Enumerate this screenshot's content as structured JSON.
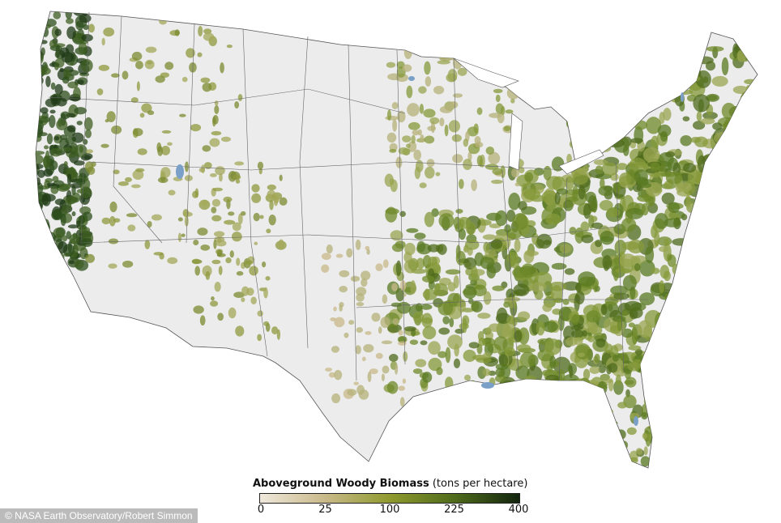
{
  "legend": {
    "title": "Aboveground Woody Biomass",
    "units": "(tons per hectare)",
    "ticks": [
      "0",
      "25",
      "100",
      "225",
      "400"
    ],
    "tick_values": [
      0,
      25,
      100,
      225,
      400
    ],
    "colors": [
      "#efe8dc",
      "#c9b98a",
      "#8f9a2e",
      "#4f6b1c",
      "#12250e"
    ]
  },
  "credit": "© NASA Earth Observatory/Robert Simmon",
  "colors": {
    "land": "#ececec",
    "border": "#555555",
    "water": "#7aa0c8"
  }
}
